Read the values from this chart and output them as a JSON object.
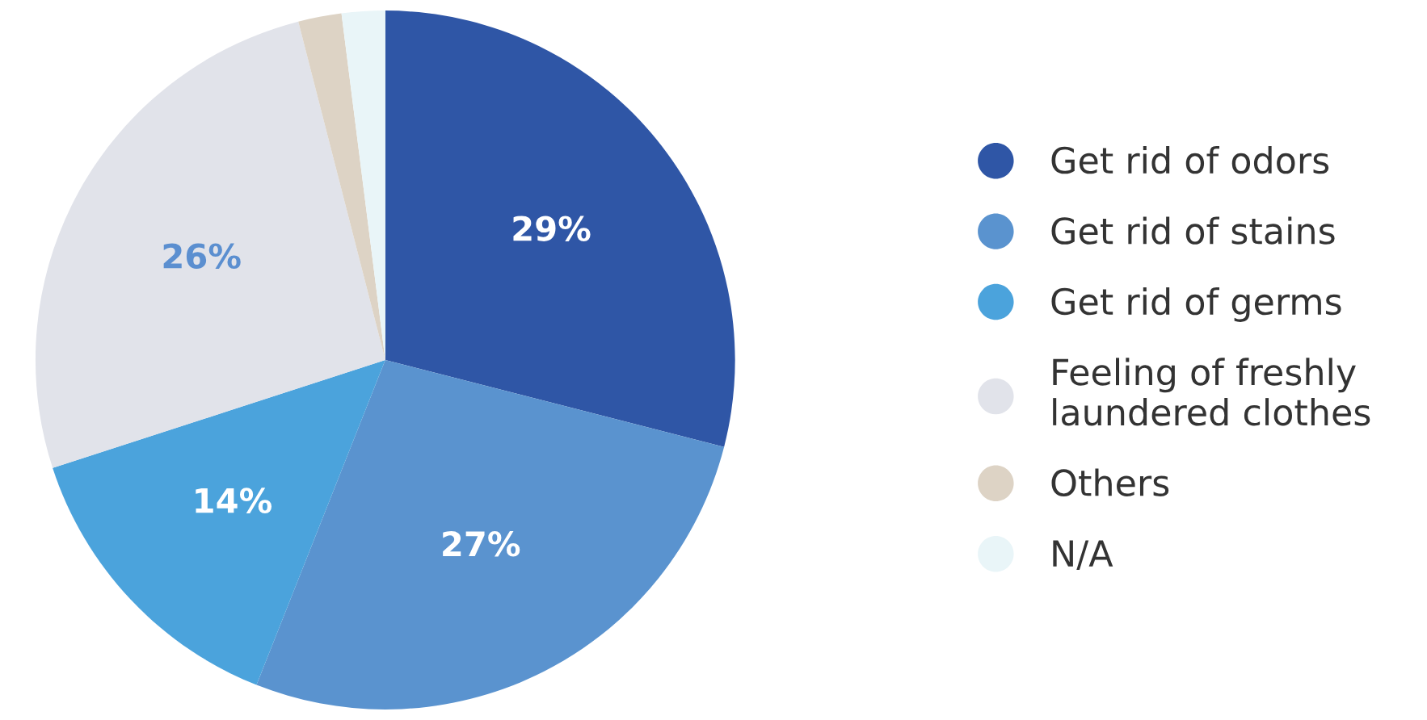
{
  "chart_data": {
    "type": "pie",
    "categories": [
      "Get rid of odors",
      "Get rid of stains",
      "Get rid of germs",
      "Feeling of freshly laundered clothes",
      "Others",
      "N/A"
    ],
    "values": [
      29,
      27,
      14,
      26,
      2,
      2
    ],
    "colors": [
      "#2f56a6",
      "#5a93cf",
      "#4ba3dc",
      "#e1e3ea",
      "#ddd3c5",
      "#e9f5f8"
    ],
    "value_labels": [
      "29%",
      "27%",
      "14%",
      "26%",
      null,
      null
    ],
    "legend": "right"
  }
}
